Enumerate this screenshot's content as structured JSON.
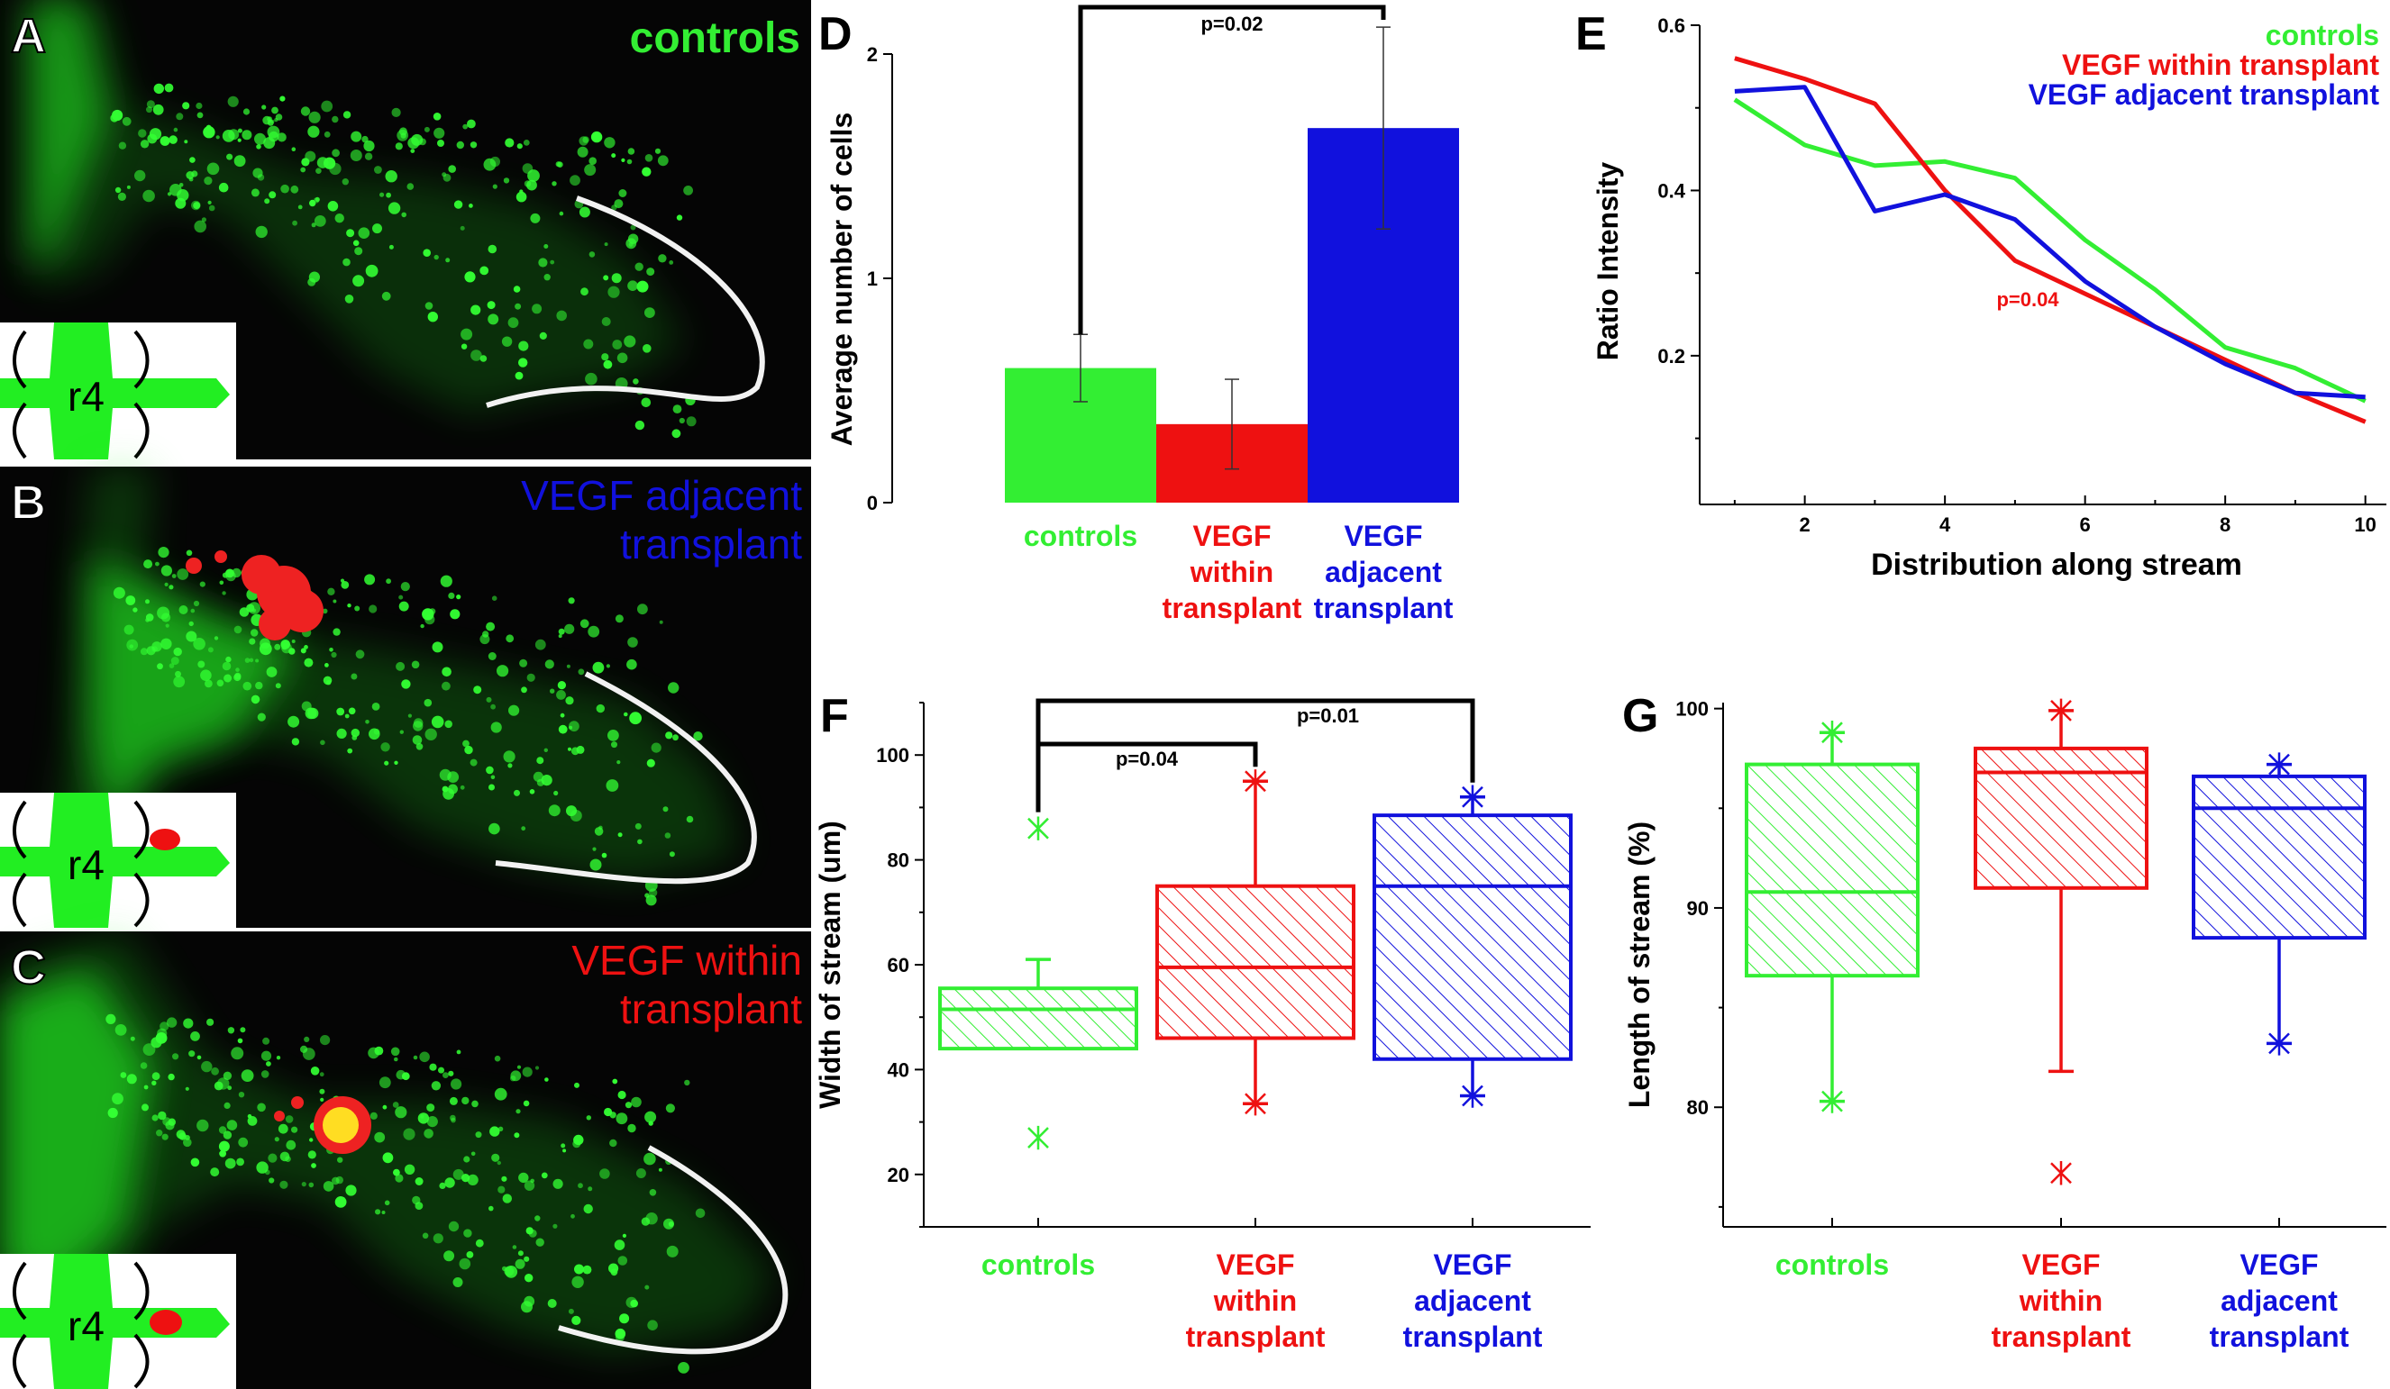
{
  "colors": {
    "controls": "#33ee33",
    "within": "#ee1111",
    "adjacent": "#1111dd",
    "micro_bg": "#050505",
    "tissue": "#22ee22",
    "annot": "#000000"
  },
  "micro": [
    {
      "letter": "A",
      "lines": [
        "controls"
      ],
      "color": "#33ee33",
      "transplant": "none"
    },
    {
      "letter": "B",
      "lines": [
        "VEGF adjacent",
        "transplant"
      ],
      "color": "#1111dd",
      "transplant": "adjacent"
    },
    {
      "letter": "C",
      "lines": [
        "VEGF within",
        "transplant"
      ],
      "color": "#ee1111",
      "transplant": "within"
    }
  ],
  "inset_label": "r4",
  "chart_data": [
    {
      "panel": "D",
      "type": "bar",
      "ylabel": "Average number of cells",
      "ylim": [
        0,
        2
      ],
      "yticks": [
        0,
        1,
        2
      ],
      "categories": [
        [
          "controls"
        ],
        [
          "VEGF",
          "within",
          "transplant"
        ],
        [
          "VEGF",
          "adjacent",
          "transplant"
        ]
      ],
      "category_colors": [
        "#33ee33",
        "#ee1111",
        "#1111dd"
      ],
      "values": [
        0.6,
        0.35,
        1.67
      ],
      "errors": [
        0.15,
        0.2,
        0.45
      ],
      "annotations": [
        {
          "text": "p=0.02",
          "between": [
            0,
            2
          ]
        }
      ]
    },
    {
      "panel": "E",
      "type": "line",
      "xlabel": "Distribution along stream",
      "ylabel": "Ratio Intensity",
      "xlim": [
        0.5,
        10.3
      ],
      "ylim": [
        0.02,
        0.6
      ],
      "xticks": [
        2,
        4,
        6,
        8,
        10
      ],
      "yticks": [
        0.2,
        0.4,
        0.6
      ],
      "x": [
        1,
        2,
        3,
        4,
        5,
        6,
        7,
        8,
        9,
        10
      ],
      "series": [
        {
          "name": "controls",
          "color": "#33ee33",
          "values": [
            0.51,
            0.455,
            0.43,
            0.435,
            0.415,
            0.34,
            0.28,
            0.21,
            0.185,
            0.145
          ]
        },
        {
          "name": "VEGF within transplant",
          "color": "#ee1111",
          "values": [
            0.56,
            0.535,
            0.505,
            0.4,
            0.315,
            0.275,
            0.235,
            0.195,
            0.155,
            0.12
          ]
        },
        {
          "name": "VEGF adjacent transplant",
          "color": "#1111dd",
          "values": [
            0.52,
            0.525,
            0.375,
            0.395,
            0.365,
            0.29,
            0.235,
            0.19,
            0.155,
            0.15
          ]
        }
      ],
      "annotations": [
        {
          "text": "p=0.04",
          "color": "#ee1111"
        }
      ]
    },
    {
      "panel": "F",
      "type": "box",
      "ylabel": "Width of stream (um)",
      "ylim": [
        10,
        110
      ],
      "yticks": [
        20,
        40,
        60,
        80,
        100
      ],
      "categories": [
        [
          "controls"
        ],
        [
          "VEGF",
          "within",
          "transplant"
        ],
        [
          "VEGF",
          "adjacent",
          "transplant"
        ]
      ],
      "category_colors": [
        "#33ee33",
        "#ee1111",
        "#1111dd"
      ],
      "boxes": [
        {
          "q1": 44,
          "median": 51.5,
          "q3": 55.5,
          "whisker_low": 44,
          "whisker_high": 61,
          "max_marker": 86,
          "min_marker": 27
        },
        {
          "q1": 46,
          "median": 59.5,
          "q3": 75,
          "whisker_low": 33.5,
          "whisker_high": 95,
          "max_marker": 95,
          "min_marker": 33.5
        },
        {
          "q1": 42,
          "median": 75,
          "q3": 88.5,
          "whisker_low": 35,
          "whisker_high": 92,
          "max_marker": 92,
          "min_marker": 35
        }
      ],
      "annotations": [
        {
          "text": "p=0.04",
          "between": [
            0,
            1
          ]
        },
        {
          "text": "p=0.01",
          "between": [
            0,
            2
          ]
        }
      ]
    },
    {
      "panel": "G",
      "type": "box",
      "ylabel": "Length of stream (%)",
      "ylim": [
        74,
        100.3
      ],
      "yticks": [
        80,
        90,
        100
      ],
      "categories": [
        [
          "controls"
        ],
        [
          "VEGF",
          "within",
          "transplant"
        ],
        [
          "VEGF",
          "adjacent",
          "transplant"
        ]
      ],
      "category_colors": [
        "#33ee33",
        "#ee1111",
        "#1111dd"
      ],
      "boxes": [
        {
          "q1": 86.6,
          "median": 90.8,
          "q3": 97.2,
          "whisker_low": 80.3,
          "whisker_high": 98.8,
          "max_marker": 98.8,
          "min_marker": 80.3
        },
        {
          "q1": 91,
          "median": 96.8,
          "q3": 98,
          "whisker_low": 81.8,
          "whisker_high": 99.9,
          "max_marker": 99.9,
          "min_marker": 76.7
        },
        {
          "q1": 88.5,
          "median": 95,
          "q3": 96.6,
          "whisker_low": 83.2,
          "whisker_high": 97.2,
          "max_marker": 97.2,
          "min_marker": 83.2
        }
      ],
      "annotations": []
    }
  ]
}
